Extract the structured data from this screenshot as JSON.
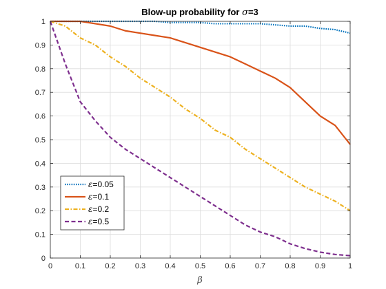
{
  "chart_data": {
    "type": "line",
    "title": "Blow-up probability for σ=3",
    "xlabel": "β",
    "ylabel": "",
    "xlim": [
      0,
      1
    ],
    "ylim": [
      0,
      1
    ],
    "xticks": [
      0,
      0.1,
      0.2,
      0.3,
      0.4,
      0.5,
      0.6,
      0.7,
      0.8,
      0.9,
      1
    ],
    "xtick_labels": [
      "0",
      "0.1",
      "0.2",
      "0.3",
      "0.4",
      "0.5",
      "0.6",
      "0.7",
      "0.8",
      "0.9",
      "1"
    ],
    "yticks": [
      0,
      0.1,
      0.2,
      0.3,
      0.4,
      0.5,
      0.6,
      0.7,
      0.8,
      0.9,
      1
    ],
    "ytick_labels": [
      "0",
      "0.1",
      "0.2",
      "0.3",
      "0.4",
      "0.5",
      "0.6",
      "0.7",
      "0.8",
      "0.9",
      "1"
    ],
    "grid": true,
    "legend_position": "bottom-left",
    "x": [
      0,
      0.05,
      0.1,
      0.15,
      0.2,
      0.25,
      0.3,
      0.35,
      0.4,
      0.45,
      0.5,
      0.55,
      0.6,
      0.65,
      0.7,
      0.75,
      0.8,
      0.85,
      0.9,
      0.95,
      1
    ],
    "series": [
      {
        "name": "ε=0.05",
        "color": "#0072BD",
        "dash": "dotted",
        "values": [
          1.0,
          1.0,
          1.0,
          1.0,
          1.0,
          1.0,
          1.0,
          1.0,
          0.995,
          0.995,
          0.995,
          0.99,
          0.99,
          0.99,
          0.99,
          0.985,
          0.98,
          0.98,
          0.97,
          0.965,
          0.95
        ]
      },
      {
        "name": "ε=0.1",
        "color": "#D95319",
        "dash": "solid",
        "values": [
          1.0,
          1.0,
          1.0,
          0.99,
          0.98,
          0.96,
          0.95,
          0.94,
          0.93,
          0.91,
          0.89,
          0.87,
          0.85,
          0.82,
          0.79,
          0.76,
          0.72,
          0.66,
          0.6,
          0.56,
          0.48
        ]
      },
      {
        "name": "ε=0.2",
        "color": "#EDB120",
        "dash": "dashdot",
        "values": [
          1.0,
          0.98,
          0.93,
          0.9,
          0.85,
          0.81,
          0.76,
          0.72,
          0.68,
          0.63,
          0.59,
          0.54,
          0.51,
          0.46,
          0.42,
          0.38,
          0.34,
          0.3,
          0.27,
          0.24,
          0.2
        ]
      },
      {
        "name": "ε=0.5",
        "color": "#7E2F8E",
        "dash": "dashed",
        "values": [
          1.0,
          0.82,
          0.66,
          0.58,
          0.51,
          0.46,
          0.42,
          0.38,
          0.34,
          0.3,
          0.26,
          0.22,
          0.18,
          0.14,
          0.11,
          0.09,
          0.06,
          0.04,
          0.025,
          0.015,
          0.01
        ]
      }
    ]
  }
}
